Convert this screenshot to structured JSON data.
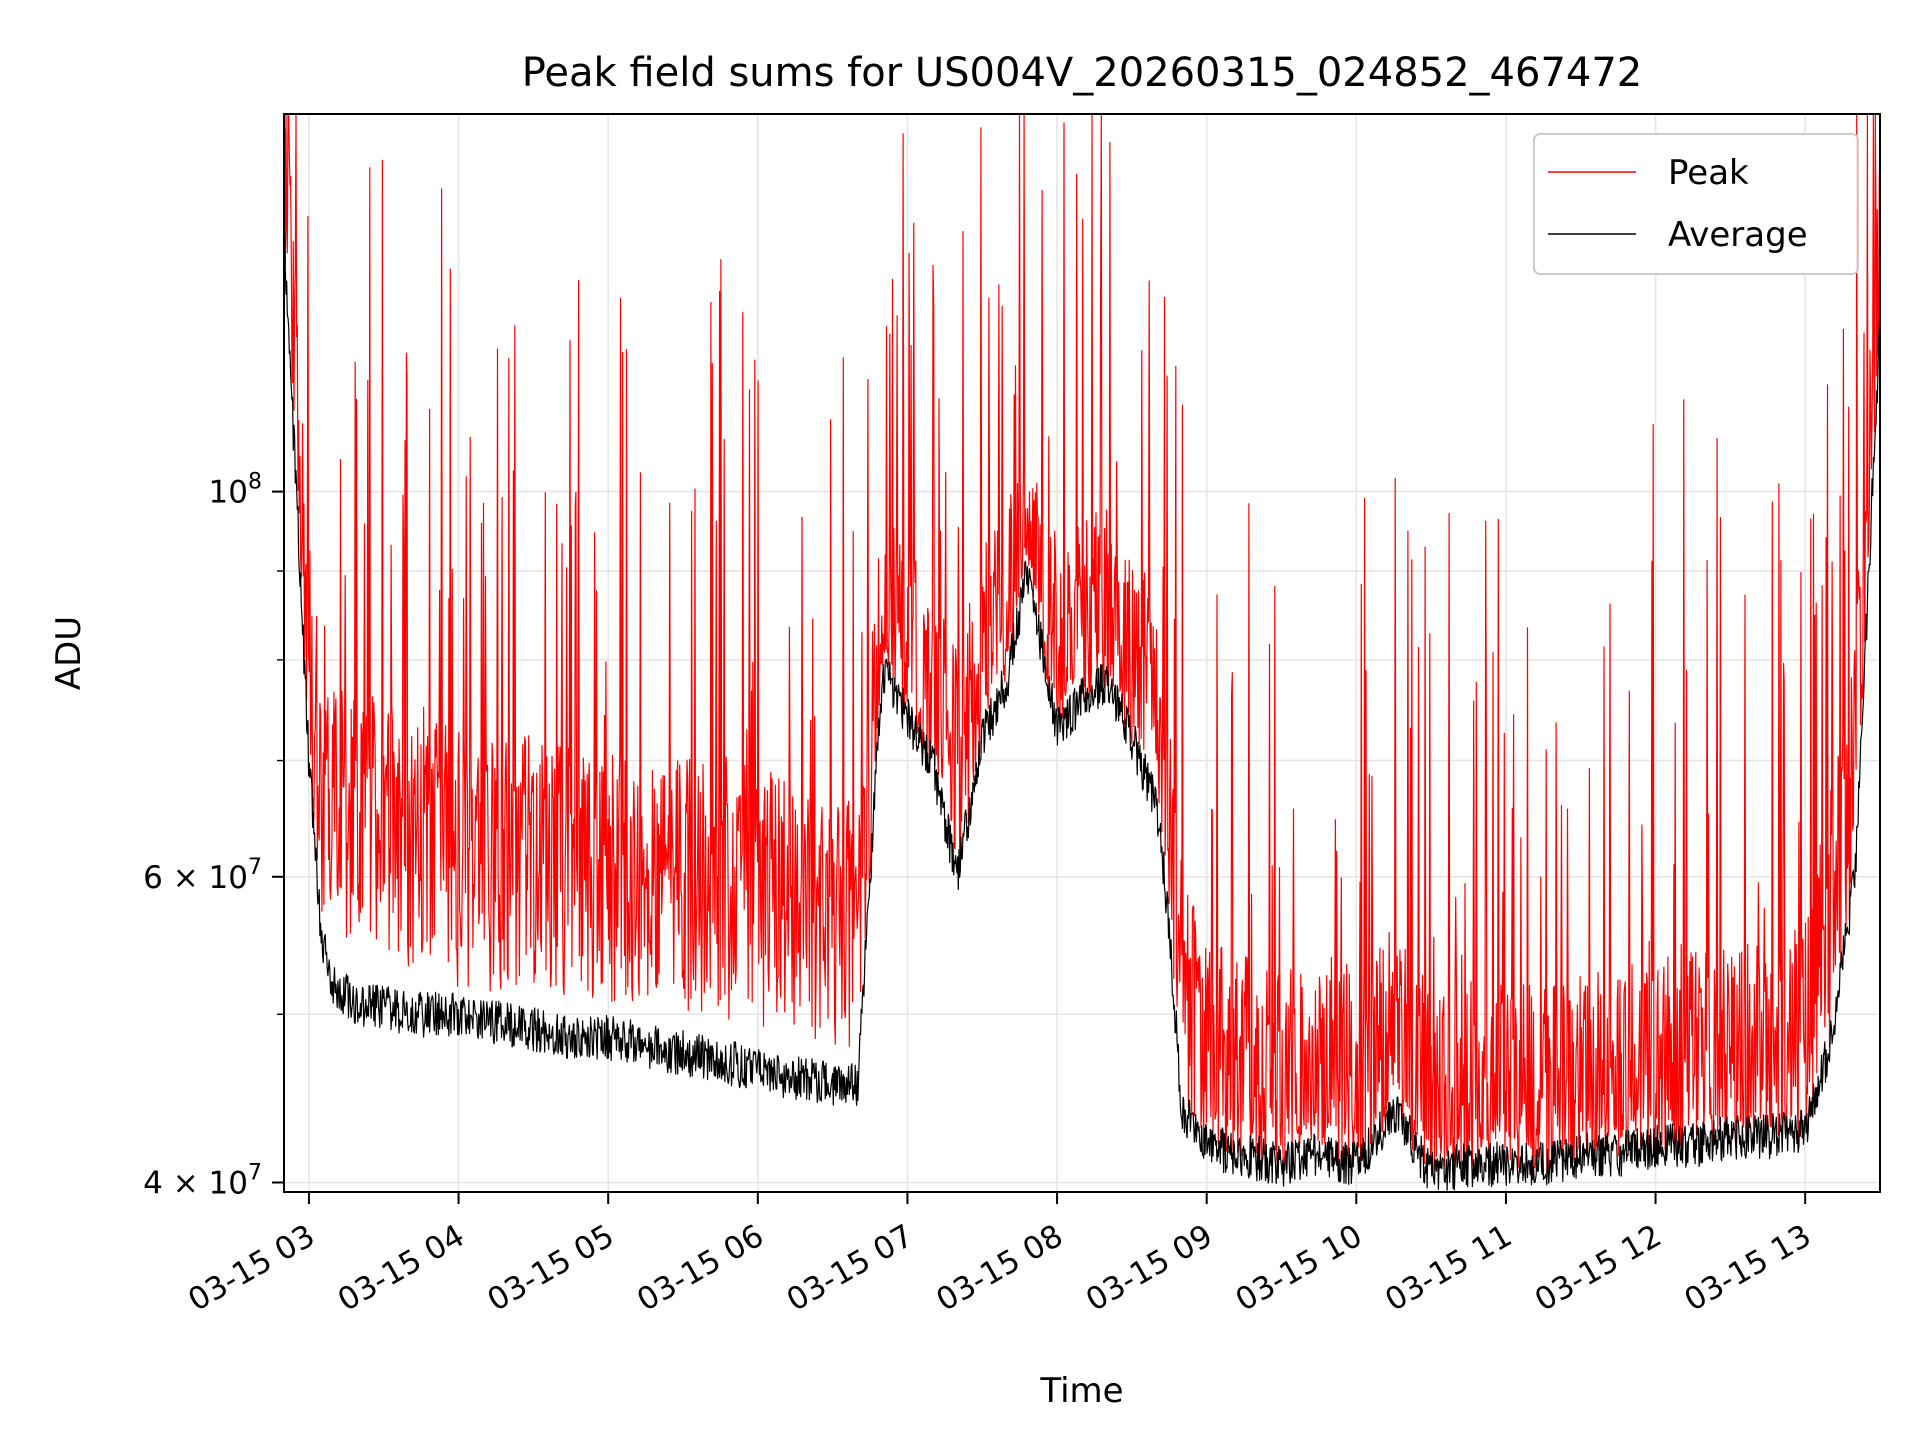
{
  "chart_data": {
    "type": "line",
    "title": "Peak field sums for US004V_20260315_024852_467472",
    "xlabel": "Time",
    "ylabel": "ADU",
    "yscale": "log",
    "grid": true,
    "legend_position": "top-right",
    "xlim": [
      "2026-03-15 02:50",
      "2026-03-15 13:30"
    ],
    "ylim": [
      39500000,
      165000000
    ],
    "x_ticks": [
      {
        "value": "2026-03-15 03:00",
        "label": "03-15 03"
      },
      {
        "value": "2026-03-15 04:00",
        "label": "03-15 04"
      },
      {
        "value": "2026-03-15 05:00",
        "label": "03-15 05"
      },
      {
        "value": "2026-03-15 06:00",
        "label": "03-15 06"
      },
      {
        "value": "2026-03-15 07:00",
        "label": "03-15 07"
      },
      {
        "value": "2026-03-15 08:00",
        "label": "03-15 08"
      },
      {
        "value": "2026-03-15 09:00",
        "label": "03-15 09"
      },
      {
        "value": "2026-03-15 10:00",
        "label": "03-15 10"
      },
      {
        "value": "2026-03-15 11:00",
        "label": "03-15 11"
      },
      {
        "value": "2026-03-15 12:00",
        "label": "03-15 12"
      },
      {
        "value": "2026-03-15 13:00",
        "label": "03-15 13"
      }
    ],
    "y_ticks_major": [
      {
        "value": 40000000,
        "base": "4 × 10",
        "exp": "7"
      },
      {
        "value": 60000000,
        "base": "6 × 10",
        "exp": "7"
      },
      {
        "value": 100000000,
        "base": "10",
        "exp": "8"
      }
    ],
    "y_gridlines": [
      40000000,
      50000000,
      60000000,
      70000000,
      80000000,
      90000000,
      100000000
    ],
    "series": [
      {
        "name": "Peak",
        "color": "#ff0000",
        "x": [
          "2026-03-15 02:50",
          "2026-03-15 02:55",
          "2026-03-15 03:00",
          "2026-03-15 03:05",
          "2026-03-15 03:10",
          "2026-03-15 03:20",
          "2026-03-15 03:30",
          "2026-03-15 03:40",
          "2026-03-15 04:00",
          "2026-03-15 04:15",
          "2026-03-15 04:30",
          "2026-03-15 04:45",
          "2026-03-15 05:00",
          "2026-03-15 05:15",
          "2026-03-15 05:30",
          "2026-03-15 05:45",
          "2026-03-15 06:00",
          "2026-03-15 06:15",
          "2026-03-15 06:30",
          "2026-03-15 06:40",
          "2026-03-15 06:50",
          "2026-03-15 07:00",
          "2026-03-15 07:10",
          "2026-03-15 07:20",
          "2026-03-15 07:30",
          "2026-03-15 07:40",
          "2026-03-15 07:48",
          "2026-03-15 07:55",
          "2026-03-15 08:00",
          "2026-03-15 08:10",
          "2026-03-15 08:20",
          "2026-03-15 08:30",
          "2026-03-15 08:40",
          "2026-03-15 08:45",
          "2026-03-15 08:50",
          "2026-03-15 09:00",
          "2026-03-15 09:15",
          "2026-03-15 09:30",
          "2026-03-15 09:45",
          "2026-03-15 10:00",
          "2026-03-15 10:15",
          "2026-03-15 10:30",
          "2026-03-15 10:45",
          "2026-03-15 11:00",
          "2026-03-15 11:15",
          "2026-03-15 11:30",
          "2026-03-15 11:45",
          "2026-03-15 12:00",
          "2026-03-15 12:15",
          "2026-03-15 12:30",
          "2026-03-15 12:45",
          "2026-03-15 13:00",
          "2026-03-15 13:10",
          "2026-03-15 13:20",
          "2026-03-15 13:30"
        ],
        "values": [
          150000000,
          110000000,
          80000000,
          62000000,
          65000000,
          63000000,
          64000000,
          62000000,
          61000000,
          60000000,
          60500000,
          60000000,
          59000000,
          59500000,
          59000000,
          58500000,
          58000000,
          56500000,
          56000000,
          55500000,
          82000000,
          78000000,
          74000000,
          68000000,
          78000000,
          82000000,
          88000000,
          84000000,
          78000000,
          80000000,
          82000000,
          76000000,
          72000000,
          62000000,
          52000000,
          46000000,
          45000000,
          44500000,
          44000000,
          44000000,
          47000000,
          43500000,
          44000000,
          43500000,
          43500000,
          44000000,
          44500000,
          45000000,
          45500000,
          45500000,
          46000000,
          47000000,
          56000000,
          70000000,
          130000000
        ]
      },
      {
        "name": "Average",
        "color": "#000000",
        "x": [
          "2026-03-15 02:50",
          "2026-03-15 02:55",
          "2026-03-15 03:00",
          "2026-03-15 03:05",
          "2026-03-15 03:10",
          "2026-03-15 03:20",
          "2026-03-15 03:30",
          "2026-03-15 03:40",
          "2026-03-15 04:00",
          "2026-03-15 04:15",
          "2026-03-15 04:30",
          "2026-03-15 04:45",
          "2026-03-15 05:00",
          "2026-03-15 05:15",
          "2026-03-15 05:30",
          "2026-03-15 05:45",
          "2026-03-15 06:00",
          "2026-03-15 06:15",
          "2026-03-15 06:30",
          "2026-03-15 06:40",
          "2026-03-15 06:50",
          "2026-03-15 07:00",
          "2026-03-15 07:10",
          "2026-03-15 07:20",
          "2026-03-15 07:30",
          "2026-03-15 07:40",
          "2026-03-15 07:48",
          "2026-03-15 07:55",
          "2026-03-15 08:00",
          "2026-03-15 08:10",
          "2026-03-15 08:20",
          "2026-03-15 08:30",
          "2026-03-15 08:40",
          "2026-03-15 08:45",
          "2026-03-15 08:50",
          "2026-03-15 09:00",
          "2026-03-15 09:15",
          "2026-03-15 09:30",
          "2026-03-15 09:45",
          "2026-03-15 10:00",
          "2026-03-15 10:15",
          "2026-03-15 10:30",
          "2026-03-15 10:45",
          "2026-03-15 11:00",
          "2026-03-15 11:15",
          "2026-03-15 11:30",
          "2026-03-15 11:45",
          "2026-03-15 12:00",
          "2026-03-15 12:15",
          "2026-03-15 12:30",
          "2026-03-15 12:45",
          "2026-03-15 13:00",
          "2026-03-15 13:10",
          "2026-03-15 13:20",
          "2026-03-15 13:30"
        ],
        "values": [
          140000000,
          100000000,
          70000000,
          55000000,
          52000000,
          50500000,
          50500000,
          50000000,
          50000000,
          49500000,
          49000000,
          48500000,
          48500000,
          48000000,
          47500000,
          47000000,
          46500000,
          46000000,
          45500000,
          45500000,
          79000000,
          74000000,
          70000000,
          60000000,
          72000000,
          78000000,
          90000000,
          80000000,
          73000000,
          76000000,
          78000000,
          72000000,
          66000000,
          56000000,
          44000000,
          42000000,
          41500000,
          41000000,
          41500000,
          41000000,
          44000000,
          40500000,
          41000000,
          41000000,
          41000000,
          41500000,
          41500000,
          42000000,
          42000000,
          42500000,
          42500000,
          43000000,
          48000000,
          60000000,
          125000000
        ]
      }
    ]
  }
}
